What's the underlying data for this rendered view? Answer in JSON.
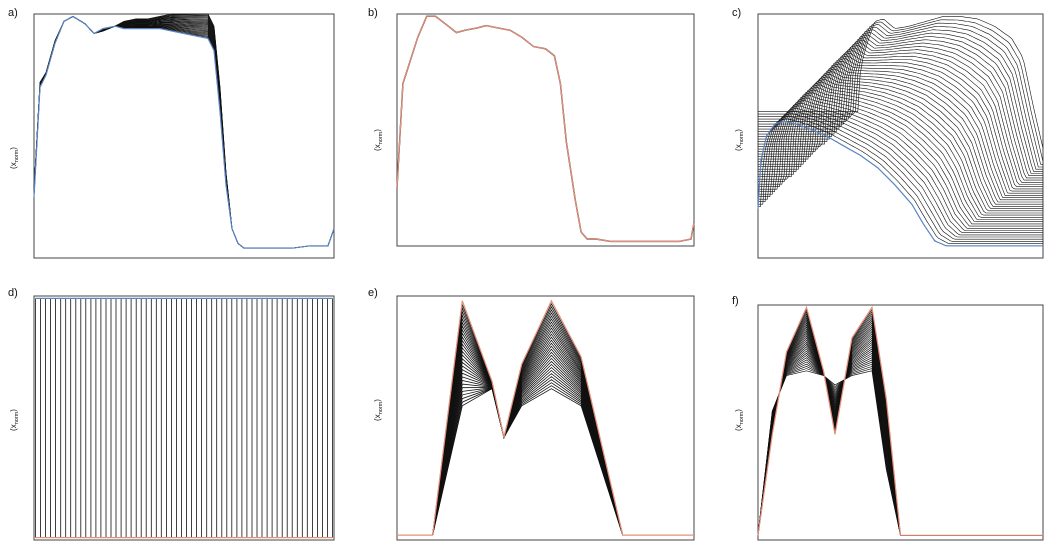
{
  "colors": {
    "lines": "#111111",
    "blue": "#5a86c6",
    "salmon": "#e8917a",
    "frame": "#444444"
  },
  "chart_data": [
    {
      "type": "line",
      "panel_label": "a)",
      "ylabel": "(x",
      "ylabel_sub": "norm",
      "ylabel_close": ")",
      "ylim": [
        0,
        1
      ],
      "x": [
        0,
        0.02,
        0.04,
        0.07,
        0.1,
        0.13,
        0.17,
        0.2,
        0.23,
        0.27,
        0.3,
        0.34,
        0.38,
        0.42,
        0.46,
        0.5,
        0.54,
        0.58,
        0.6,
        0.62,
        0.64,
        0.66,
        0.68,
        0.7,
        0.73,
        0.76,
        0.8,
        0.86,
        0.92,
        0.98,
        1.0
      ],
      "series": [
        {
          "values": [
            0.25,
            0.7,
            0.75,
            0.88,
            0.97,
            0.99,
            0.96,
            0.92,
            0.94,
            0.95,
            0.94,
            0.94,
            0.94,
            0.94,
            0.93,
            0.92,
            0.91,
            0.9,
            0.85,
            0.6,
            0.3,
            0.12,
            0.06,
            0.04,
            0.04,
            0.04,
            0.04,
            0.04,
            0.05,
            0.05,
            0.12
          ]
        },
        {
          "values": [
            0.28,
            0.72,
            0.76,
            0.89,
            0.97,
            0.99,
            0.96,
            0.92,
            0.93,
            0.95,
            0.97,
            0.98,
            0.98,
            0.99,
            1.0,
            1.0,
            1.0,
            1.0,
            0.95,
            0.7,
            0.35,
            0.12,
            0.06,
            0.04,
            0.04,
            0.04,
            0.04,
            0.04,
            0.05,
            0.05,
            0.12
          ]
        }
      ]
    },
    {
      "type": "line",
      "panel_label": "b)",
      "ylabel": "(x",
      "ylabel_sub": "norm",
      "ylabel_close": ")",
      "ylim": [
        0,
        1
      ],
      "x": [
        0,
        0.02,
        0.04,
        0.07,
        0.1,
        0.13,
        0.17,
        0.2,
        0.23,
        0.27,
        0.3,
        0.34,
        0.38,
        0.42,
        0.46,
        0.5,
        0.53,
        0.55,
        0.57,
        0.6,
        0.62,
        0.64,
        0.67,
        0.72,
        0.8,
        0.88,
        0.95,
        0.99,
        1.0
      ],
      "series": [
        {
          "values": [
            0.25,
            0.7,
            0.78,
            0.9,
            0.99,
            0.99,
            0.95,
            0.92,
            0.93,
            0.94,
            0.95,
            0.94,
            0.93,
            0.9,
            0.86,
            0.85,
            0.82,
            0.7,
            0.45,
            0.2,
            0.06,
            0.03,
            0.03,
            0.02,
            0.02,
            0.02,
            0.02,
            0.03,
            0.1
          ]
        }
      ]
    },
    {
      "type": "line",
      "panel_label": "c)",
      "ylabel": "(x",
      "ylabel_sub": "norm",
      "ylabel_close": ")",
      "ylim": [
        0,
        1
      ],
      "x": [
        0,
        0.01,
        0.03,
        0.06,
        0.09,
        0.13,
        0.18,
        0.24,
        0.3,
        0.36,
        0.42,
        0.48,
        0.54,
        0.58,
        0.62,
        0.66,
        0.7,
        0.74,
        0.78,
        0.82,
        0.86,
        0.9,
        0.94,
        0.98,
        1.0
      ],
      "series": [
        {
          "values": [
            0.2,
            0.4,
            0.5,
            0.55,
            0.56,
            0.55,
            0.53,
            0.5,
            0.46,
            0.42,
            0.37,
            0.3,
            0.22,
            0.14,
            0.07,
            0.05,
            0.05,
            0.05,
            0.05,
            0.05,
            0.05,
            0.05,
            0.05,
            0.05,
            0.05
          ]
        },
        {
          "values": [
            0.6,
            0.78,
            0.87,
            0.97,
            0.98,
            0.94,
            0.95,
            0.97,
            0.99,
            0.99,
            0.98,
            0.95,
            0.9,
            0.82,
            0.6,
            0.4,
            0.4,
            0.4,
            0.4,
            0.4,
            0.4,
            0.4,
            0.4,
            0.4,
            0.4
          ]
        }
      ]
    },
    {
      "type": "line",
      "panel_label": "d)",
      "ylabel": "(x",
      "ylabel_sub": "norm",
      "ylabel_close": ")",
      "ylim": [
        0,
        1
      ],
      "x": [
        0,
        1
      ],
      "series": [
        {
          "values": [
            0.99,
            0.99
          ]
        },
        {
          "values": [
            0.01,
            0.01
          ]
        }
      ]
    },
    {
      "type": "line",
      "panel_label": "e)",
      "ylabel": "(x",
      "ylabel_sub": "norm",
      "ylabel_close": ")",
      "ylim": [
        0,
        1
      ],
      "x": [
        0,
        0.12,
        0.22,
        0.32,
        0.36,
        0.42,
        0.52,
        0.62,
        0.76,
        1.0
      ],
      "series": [
        {
          "values": [
            0.02,
            0.02,
            0.55,
            0.62,
            0.42,
            0.55,
            0.62,
            0.55,
            0.02,
            0.02
          ]
        },
        {
          "values": [
            0.02,
            0.02,
            0.98,
            0.65,
            0.42,
            0.72,
            0.98,
            0.75,
            0.02,
            0.02
          ]
        }
      ]
    },
    {
      "type": "line",
      "panel_label": "f)",
      "ylabel": "(x",
      "ylabel_sub": "norm",
      "ylabel_close": ")",
      "ylim": [
        0,
        1
      ],
      "x": [
        0,
        0.05,
        0.1,
        0.17,
        0.23,
        0.27,
        0.33,
        0.4,
        0.45,
        0.5,
        0.7,
        1.0
      ],
      "series": [
        {
          "values": [
            0.02,
            0.55,
            0.7,
            0.72,
            0.7,
            0.66,
            0.7,
            0.72,
            0.3,
            0.02,
            0.02,
            0.02
          ]
        },
        {
          "values": [
            0.02,
            0.45,
            0.8,
            0.99,
            0.72,
            0.45,
            0.86,
            0.99,
            0.6,
            0.02,
            0.02,
            0.02
          ]
        }
      ]
    }
  ]
}
